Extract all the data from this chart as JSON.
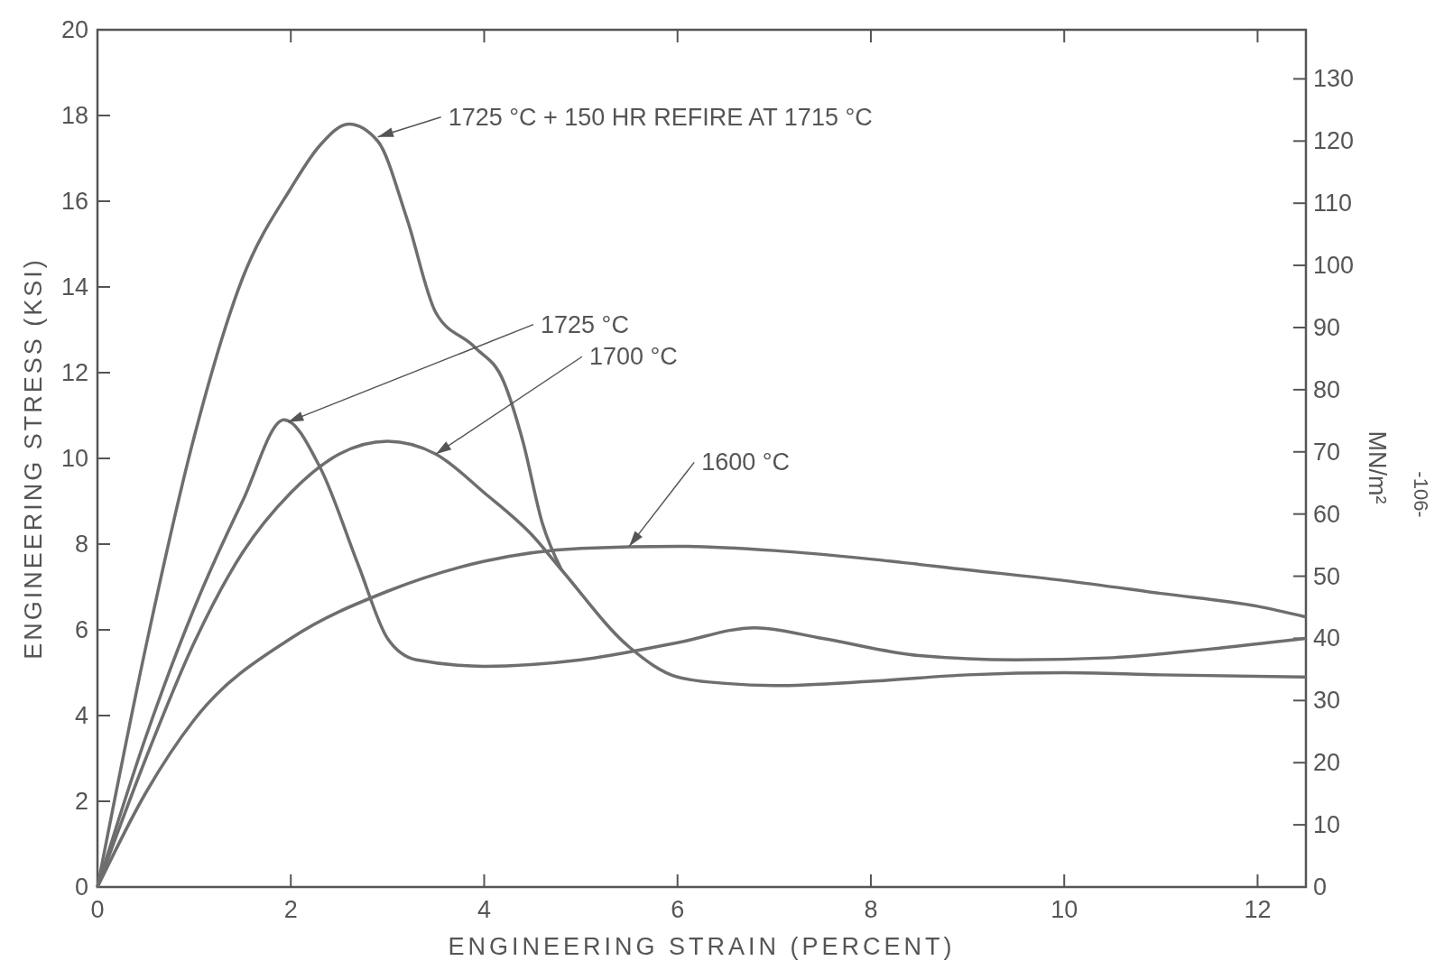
{
  "chart_data": {
    "type": "line",
    "xlabel": "ENGINEERING STRAIN (PERCENT)",
    "ylabel": "ENGINEERING STRESS (KSI)",
    "y2label": "MN/m²",
    "xlim": [
      0,
      12.5
    ],
    "xticks": [
      0,
      2,
      4,
      6,
      8,
      10,
      12
    ],
    "ylim": [
      0,
      20
    ],
    "yticks": [
      0,
      2,
      4,
      6,
      8,
      10,
      12,
      14,
      16,
      18,
      20
    ],
    "y2lim": [
      0,
      137.9
    ],
    "y2ticks": [
      0,
      10,
      20,
      30,
      40,
      50,
      60,
      70,
      80,
      90,
      100,
      110,
      120,
      130
    ],
    "grid": false,
    "marker": "none",
    "line_style": "solid",
    "series": [
      {
        "color": "#6e6e6e",
        "x": [
          0,
          0.5,
          1,
          1.5,
          2,
          2.3,
          2.6,
          2.9,
          3.2,
          3.5,
          3.9,
          4.2,
          4.4,
          4.6,
          4.8
        ],
        "values": [
          0,
          5.6,
          10.5,
          14.2,
          16.3,
          17.3,
          17.8,
          17.4,
          15.6,
          13.4,
          12.6,
          11.8,
          10.4,
          8.5,
          7.4
        ]
      },
      {
        "color": "#6e6e6e",
        "x": [
          0,
          0.5,
          1,
          1.5,
          1.93,
          2.3,
          2.7,
          3,
          3.3,
          4,
          5,
          6,
          6.8,
          7.5,
          8.5,
          9.5,
          10.5,
          11.5,
          12.5
        ],
        "values": [
          0,
          3.5,
          6.5,
          9,
          10.9,
          9.8,
          7.5,
          5.8,
          5.3,
          5.15,
          5.3,
          5.7,
          6.05,
          5.8,
          5.4,
          5.3,
          5.35,
          5.55,
          5.8
        ]
      },
      {
        "color": "#6e6e6e",
        "x": [
          0,
          0.5,
          1,
          1.5,
          2,
          2.5,
          3,
          3.5,
          4,
          4.5,
          4.8,
          5.5,
          6,
          6.5,
          7,
          8,
          9,
          10,
          11,
          12.5
        ],
        "values": [
          0,
          3,
          5.7,
          7.8,
          9.2,
          10.1,
          10.4,
          10.1,
          9.2,
          8.2,
          7.4,
          5.6,
          4.9,
          4.75,
          4.7,
          4.8,
          4.95,
          5.0,
          4.95,
          4.9
        ]
      },
      {
        "color": "#6e6e6e",
        "x": [
          0,
          0.5,
          1,
          2,
          3,
          4,
          5,
          6,
          7,
          8,
          9,
          10,
          11,
          12,
          12.5
        ],
        "values": [
          0,
          2.2,
          3.9,
          5.8,
          6.9,
          7.6,
          7.9,
          7.95,
          7.85,
          7.65,
          7.4,
          7.15,
          6.85,
          6.55,
          6.3
        ]
      }
    ],
    "annotations": [
      {
        "text": "1725 °C + 150 HR REFIRE AT 1715 °C",
        "x": 2.9,
        "y": 17.5
      },
      {
        "text": "1725 °C",
        "x": 1.97,
        "y": 10.85
      },
      {
        "text": "1700 °C",
        "x": 3.5,
        "y": 10.1
      },
      {
        "text": "1600 °C",
        "x": 5.5,
        "y": 7.95
      },
      "-106-"
    ]
  }
}
